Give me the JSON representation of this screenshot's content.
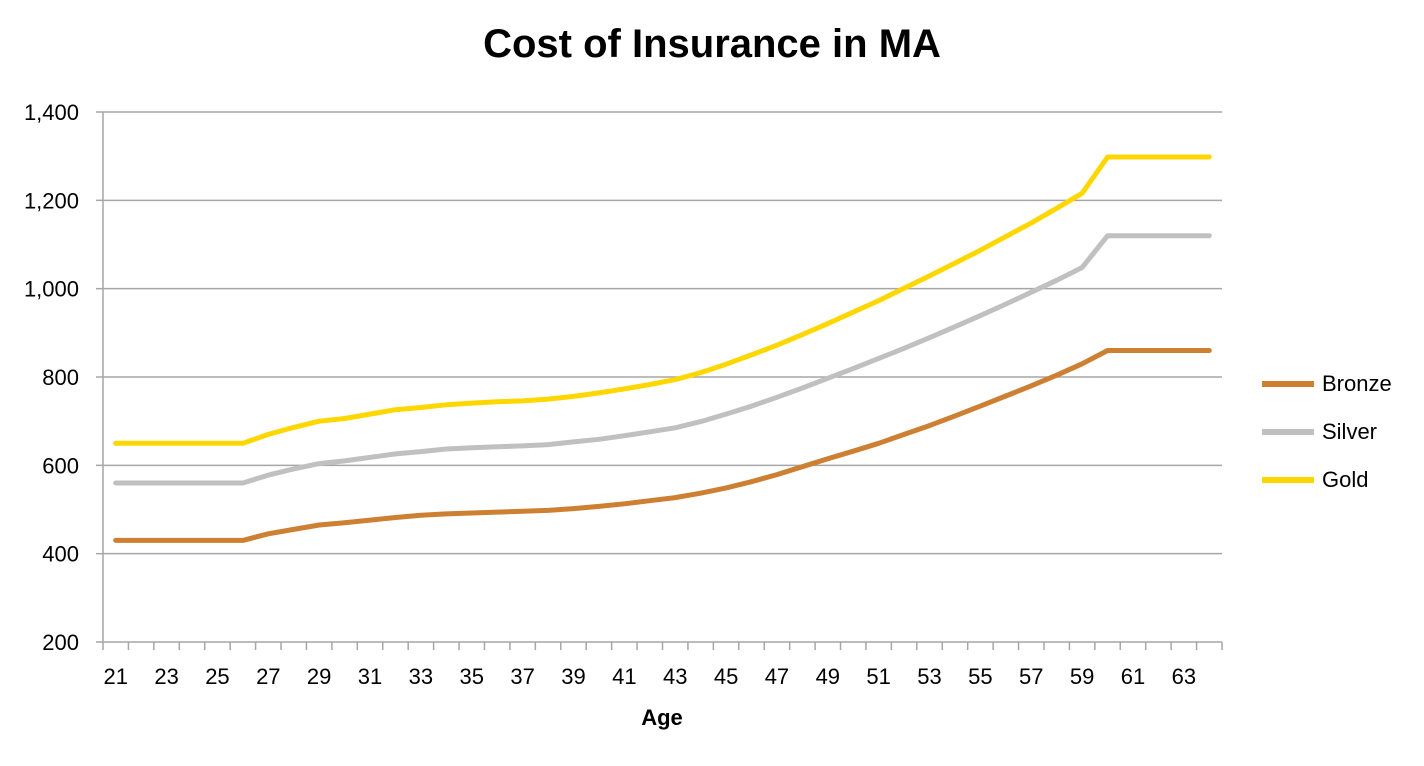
{
  "chart_data": {
    "type": "line",
    "title": "Cost of Insurance in MA",
    "xlabel": "Age",
    "ylabel": "",
    "x": [
      21,
      22,
      23,
      24,
      25,
      26,
      27,
      28,
      29,
      30,
      31,
      32,
      33,
      34,
      35,
      36,
      37,
      38,
      39,
      40,
      41,
      42,
      43,
      44,
      45,
      46,
      47,
      48,
      49,
      50,
      51,
      52,
      53,
      54,
      55,
      56,
      57,
      58,
      59,
      60,
      61,
      62,
      63,
      64
    ],
    "x_tick_labels": [
      "21",
      "23",
      "25",
      "27",
      "29",
      "31",
      "33",
      "35",
      "37",
      "39",
      "41",
      "43",
      "45",
      "47",
      "49",
      "51",
      "53",
      "55",
      "57",
      "59",
      "61",
      "63"
    ],
    "ylim": [
      200,
      1400
    ],
    "y_ticks": [
      200,
      400,
      600,
      800,
      1000,
      1200,
      1400
    ],
    "y_tick_labels": [
      "200",
      "400",
      "600",
      "800",
      "1,000",
      "1,200",
      "1,400"
    ],
    "grid": true,
    "legend_position": "right",
    "series": [
      {
        "name": "Bronze",
        "color": "#CD7F32",
        "values": [
          430,
          430,
          430,
          430,
          430,
          430,
          445,
          455,
          465,
          470,
          476,
          482,
          487,
          490,
          492,
          494,
          496,
          498,
          502,
          507,
          513,
          520,
          527,
          537,
          549,
          563,
          579,
          597,
          615,
          632,
          650,
          670,
          690,
          712,
          734,
          757,
          780,
          804,
          830,
          860,
          860,
          860,
          860,
          860
        ]
      },
      {
        "name": "Silver",
        "color": "#C0C0C0",
        "values": [
          560,
          560,
          560,
          560,
          560,
          560,
          578,
          592,
          604,
          610,
          618,
          626,
          631,
          637,
          640,
          642,
          644,
          647,
          653,
          659,
          667,
          676,
          685,
          699,
          716,
          734,
          754,
          775,
          797,
          819,
          842,
          865,
          889,
          914,
          939,
          965,
          992,
          1019,
          1048,
          1120,
          1120,
          1120,
          1120,
          1120
        ]
      },
      {
        "name": "Gold",
        "color": "#FFD700",
        "values": [
          650,
          650,
          650,
          650,
          650,
          650,
          670,
          686,
          700,
          706,
          716,
          726,
          731,
          737,
          741,
          744,
          746,
          750,
          756,
          764,
          773,
          783,
          794,
          810,
          829,
          850,
          872,
          896,
          921,
          947,
          973,
          1001,
          1029,
          1058,
          1087,
          1118,
          1149,
          1182,
          1216,
          1298,
          1298,
          1298,
          1298,
          1298
        ]
      }
    ]
  }
}
